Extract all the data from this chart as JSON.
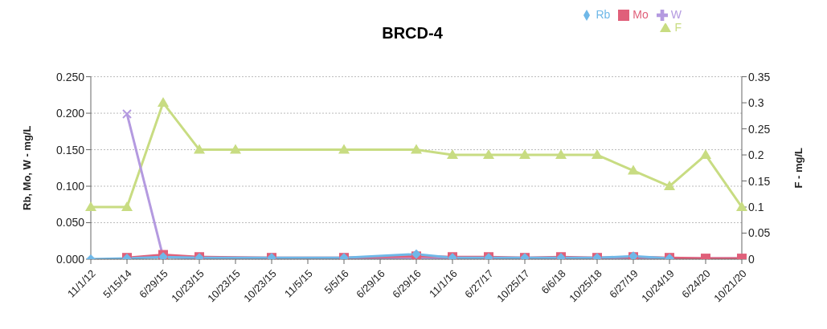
{
  "chart_data": {
    "type": "line",
    "title": "BRCD-4",
    "ylabel": "Rb, Mo, W - mg/L",
    "y2label": "F - mg/L",
    "categories": [
      "11/1/12",
      "5/15/14",
      "6/29/15",
      "10/23/15",
      "10/23/15",
      "10/23/15",
      "11/5/15",
      "5/5/16",
      "6/29/16",
      "6/29/16",
      "11/1/16",
      "6/27/17",
      "10/25/17",
      "6/6/18",
      "10/25/18",
      "6/27/19",
      "10/24/19",
      "6/24/20",
      "10/21/20"
    ],
    "series": [
      {
        "name": "Rb",
        "color": "#6fb8e8",
        "marker": "diamond",
        "values": [
          0,
          0.001,
          0.003,
          0.002,
          null,
          0.002,
          null,
          0.002,
          null,
          0.007,
          0.002,
          0.002,
          0.002,
          0.002,
          0.002,
          0.004,
          0.001,
          null,
          null
        ]
      },
      {
        "name": "Mo",
        "color": "#e0607a",
        "marker": "square",
        "values": [
          null,
          0.002,
          0.006,
          0.003,
          null,
          0.002,
          null,
          0.002,
          null,
          0.004,
          0.003,
          0.003,
          0.002,
          0.003,
          0.002,
          0.003,
          0.002,
          0.001,
          0.001
        ]
      },
      {
        "name": "W",
        "color": "#b49ae0",
        "marker": "cross",
        "values": [
          null,
          0.199,
          0.003,
          0.001,
          null,
          0.001,
          null,
          0.001,
          null,
          0.001,
          0.001,
          0.001,
          0.001,
          0.001,
          0.001,
          0.001,
          0.001,
          0.001,
          0.001
        ]
      },
      {
        "name": "F",
        "color": "#c8dc82",
        "marker": "triangle",
        "axis": "y2",
        "values": [
          0.1,
          0.1,
          0.3,
          0.21,
          0.21,
          null,
          null,
          0.21,
          null,
          0.21,
          0.2,
          0.2,
          0.2,
          0.2,
          0.2,
          0.17,
          0.14,
          0.2,
          0.1
        ]
      }
    ],
    "ylim": [
      0,
      0.25
    ],
    "yticks": [
      {
        "value": 0,
        "label": "0.000"
      },
      {
        "value": 0.05,
        "label": "0.050"
      },
      {
        "value": 0.1,
        "label": "0.100"
      },
      {
        "value": 0.15,
        "label": "0.150"
      },
      {
        "value": 0.2,
        "label": "0.200"
      },
      {
        "value": 0.25,
        "label": "0.250"
      }
    ],
    "y2lim": [
      0,
      0.35
    ],
    "y2ticks": [
      0,
      0.05,
      0.1,
      0.15,
      0.2,
      0.25,
      0.3,
      0.35
    ],
    "grid": "y",
    "legend": "top right"
  }
}
